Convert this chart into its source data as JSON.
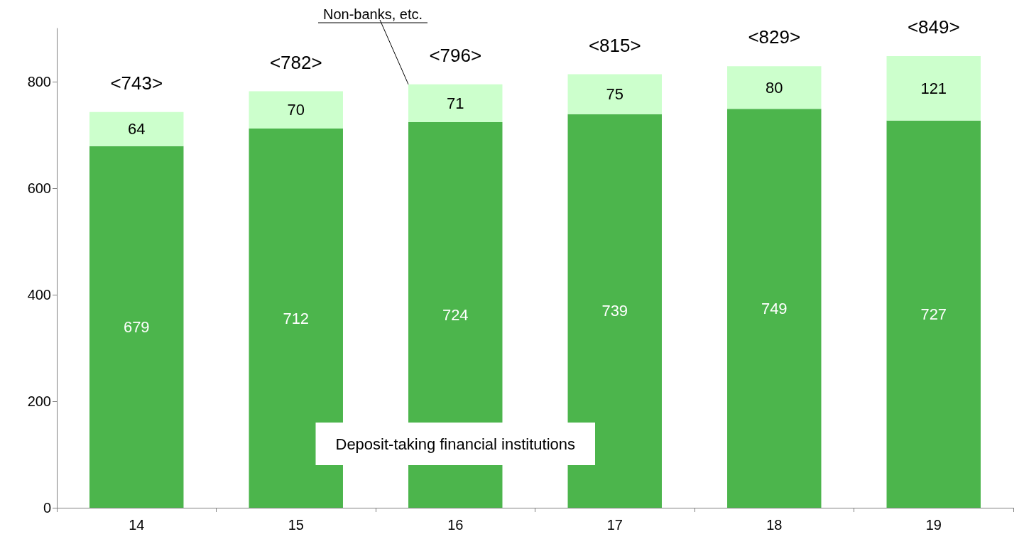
{
  "chart_data": {
    "type": "bar",
    "stacked": true,
    "categories": [
      "14",
      "15",
      "16",
      "17",
      "18",
      "19"
    ],
    "series": [
      {
        "name": "Deposit-taking financial institutions",
        "color": "#4cb54c",
        "values": [
          679,
          712,
          724,
          739,
          749,
          727
        ]
      },
      {
        "name": "Non-banks, etc.",
        "color": "#ccffcc",
        "values": [
          64,
          70,
          71,
          75,
          80,
          121
        ]
      }
    ],
    "totals": [
      "<743>",
      "<782>",
      "<796>",
      "<815>",
      "<829>",
      "<849>"
    ],
    "data_labels": true,
    "ylim": [
      0,
      900
    ],
    "yticks": [
      0,
      200,
      400,
      600,
      800
    ],
    "grid": false,
    "legend": false
  }
}
